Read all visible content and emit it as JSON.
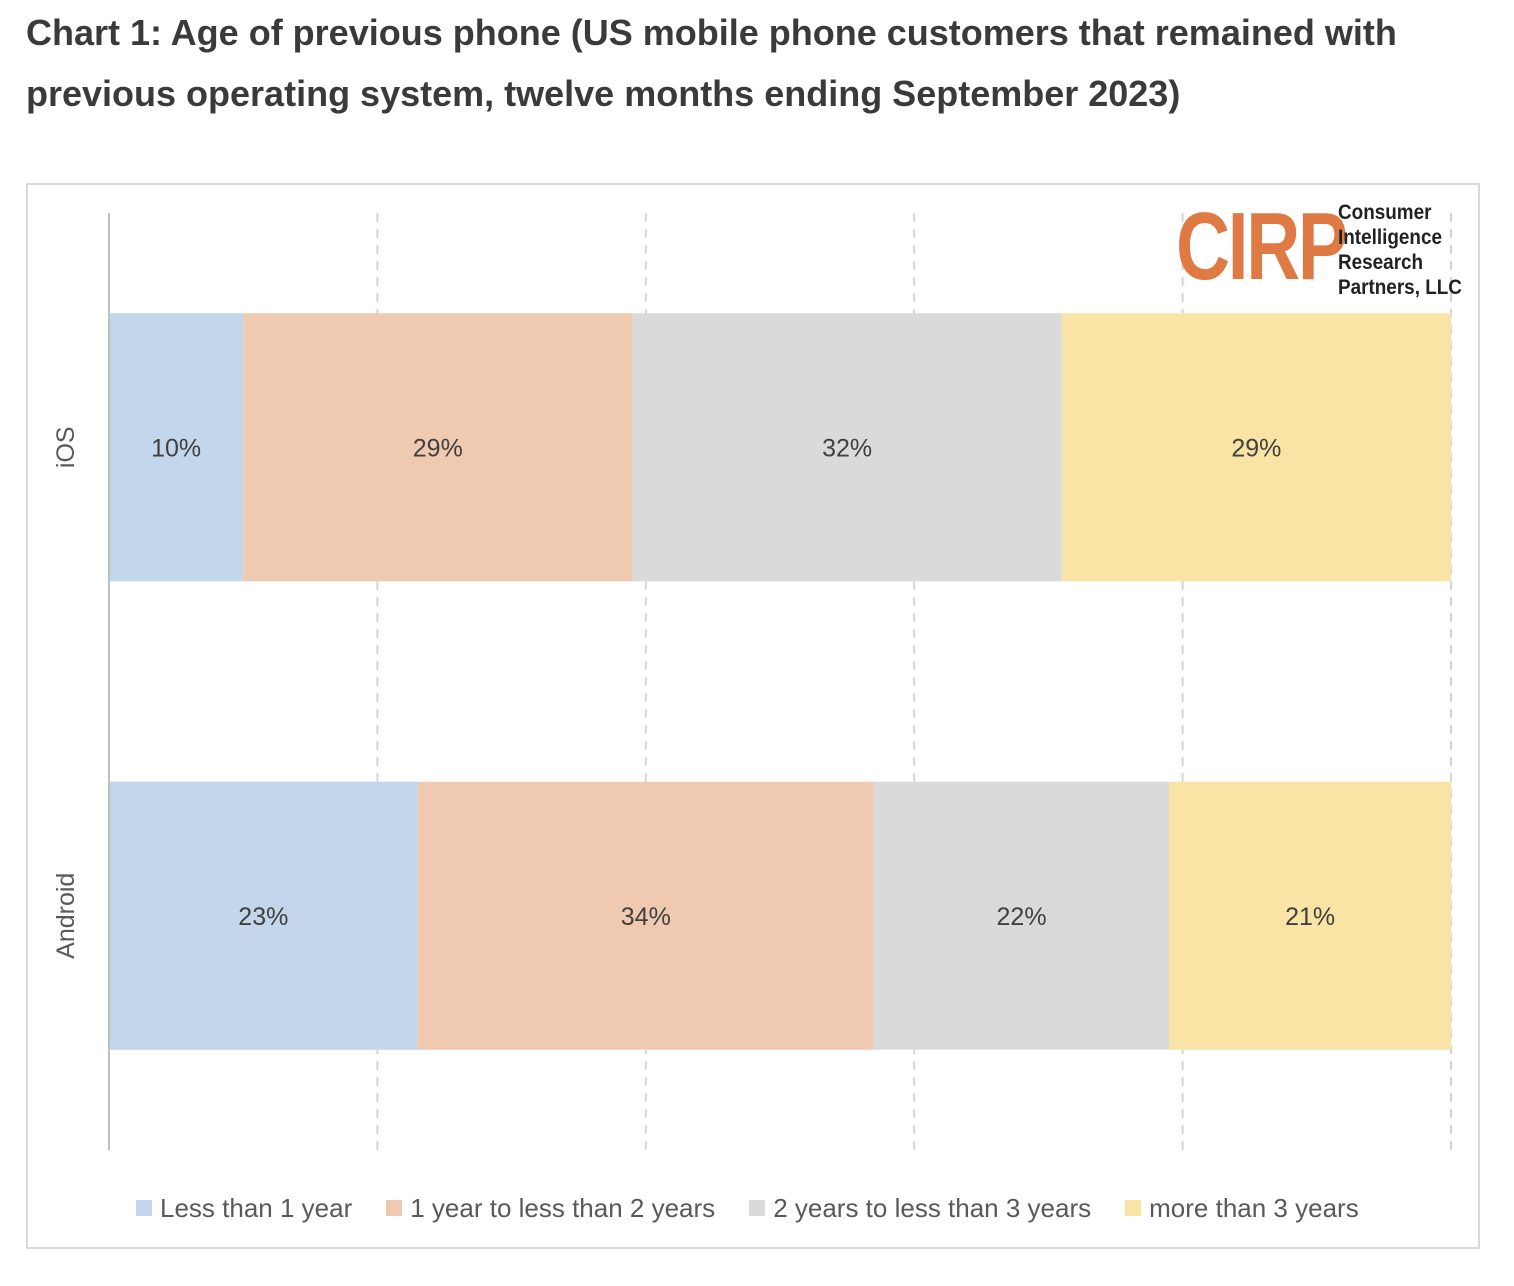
{
  "title": "Chart 1: Age of previous phone (US mobile phone customers that remained with previous operating system, twelve months ending September 2023)",
  "logo": {
    "mark": "CIRP",
    "lines": [
      "Consumer",
      "Intelligence",
      "Research",
      "Partners, LLC"
    ],
    "color": "#e07a45"
  },
  "chart_data": {
    "type": "bar",
    "orientation": "horizontal",
    "stacked": "100%",
    "categories": [
      "iOS",
      "Android"
    ],
    "series": [
      {
        "name": "Less than 1 year",
        "color": "#c3d6eb",
        "values": [
          10,
          23
        ],
        "labels": [
          "10%",
          "23%"
        ]
      },
      {
        "name": "1 year to less than 2 years",
        "color": "#f0cab0",
        "values": [
          29,
          34
        ],
        "labels": [
          "29%",
          "34%"
        ]
      },
      {
        "name": "2 years to less than 3 years",
        "color": "#dadada",
        "values": [
          32,
          22
        ],
        "labels": [
          "32%",
          "22%"
        ]
      },
      {
        "name": "more than 3 years",
        "color": "#f9e4a5",
        "values": [
          29,
          21
        ],
        "labels": [
          "29%",
          "21%"
        ]
      }
    ],
    "xlim": [
      0,
      100
    ],
    "grid": "vertical dashed",
    "legend": "bottom"
  }
}
